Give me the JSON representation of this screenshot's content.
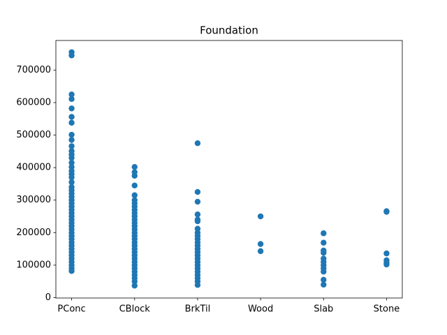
{
  "chart_data": {
    "type": "scatter",
    "title": "Foundation",
    "categories": [
      "PConc",
      "CBlock",
      "BrkTil",
      "Wood",
      "Slab",
      "Stone"
    ],
    "color": "#1f77b4",
    "xlim": [
      -0.25,
      5.25
    ],
    "ylim": [
      -1105,
      791005
    ],
    "yticks": [
      0,
      100000,
      200000,
      300000,
      400000,
      500000,
      600000,
      700000
    ],
    "x": [
      "PConc",
      "PConc",
      "PConc",
      "PConc",
      "PConc",
      "PConc",
      "PConc",
      "PConc",
      "PConc",
      "PConc",
      "PConc",
      "PConc",
      "PConc",
      "PConc",
      "PConc",
      "PConc",
      "PConc",
      "PConc",
      "PConc",
      "PConc",
      "PConc",
      "PConc",
      "PConc",
      "PConc",
      "PConc",
      "PConc",
      "PConc",
      "PConc",
      "PConc",
      "PConc",
      "PConc",
      "PConc",
      "PConc",
      "PConc",
      "PConc",
      "PConc",
      "PConc",
      "PConc",
      "PConc",
      "PConc",
      "PConc",
      "PConc",
      "PConc",
      "PConc",
      "PConc",
      "PConc",
      "CBlock",
      "CBlock",
      "CBlock",
      "CBlock",
      "CBlock",
      "CBlock",
      "CBlock",
      "CBlock",
      "CBlock",
      "CBlock",
      "CBlock",
      "CBlock",
      "CBlock",
      "CBlock",
      "CBlock",
      "CBlock",
      "CBlock",
      "CBlock",
      "CBlock",
      "CBlock",
      "CBlock",
      "CBlock",
      "CBlock",
      "CBlock",
      "CBlock",
      "CBlock",
      "CBlock",
      "CBlock",
      "CBlock",
      "CBlock",
      "CBlock",
      "CBlock",
      "BrkTil",
      "BrkTil",
      "BrkTil",
      "BrkTil",
      "BrkTil",
      "BrkTil",
      "BrkTil",
      "BrkTil",
      "BrkTil",
      "BrkTil",
      "BrkTil",
      "BrkTil",
      "BrkTil",
      "BrkTil",
      "BrkTil",
      "BrkTil",
      "BrkTil",
      "BrkTil",
      "BrkTil",
      "BrkTil",
      "BrkTil",
      "BrkTil",
      "BrkTil",
      "BrkTil",
      "Wood",
      "Wood",
      "Wood",
      "Slab",
      "Slab",
      "Slab",
      "Slab",
      "Slab",
      "Slab",
      "Slab",
      "Slab",
      "Slab",
      "Slab",
      "Slab",
      "Stone",
      "Stone",
      "Stone",
      "Stone",
      "Stone",
      "Stone"
    ],
    "values": [
      755000,
      745000,
      625000,
      611000,
      582000,
      556000,
      538000,
      501000,
      485000,
      466000,
      451000,
      440000,
      430000,
      415000,
      402000,
      390000,
      380000,
      370000,
      355000,
      340000,
      330000,
      320000,
      310000,
      300000,
      290000,
      280000,
      270000,
      260000,
      250000,
      240000,
      230000,
      220000,
      210000,
      200000,
      190000,
      180000,
      170000,
      160000,
      150000,
      140000,
      130000,
      120000,
      110000,
      100000,
      90000,
      82000,
      402000,
      386000,
      375000,
      345000,
      315000,
      300000,
      290000,
      280000,
      270000,
      260000,
      250000,
      240000,
      230000,
      220000,
      210000,
      200000,
      190000,
      180000,
      170000,
      160000,
      150000,
      140000,
      130000,
      120000,
      110000,
      100000,
      90000,
      80000,
      70000,
      60000,
      50000,
      37000,
      475000,
      325000,
      295000,
      256000,
      240000,
      235000,
      212000,
      200000,
      190000,
      180000,
      170000,
      160000,
      150000,
      140000,
      130000,
      120000,
      110000,
      100000,
      90000,
      80000,
      70000,
      60000,
      50000,
      39000,
      250000,
      165000,
      143000,
      198000,
      169000,
      145000,
      138000,
      120000,
      110000,
      100000,
      90000,
      80000,
      55000,
      40000,
      266000,
      264000,
      136000,
      115000,
      107000,
      102000
    ]
  }
}
